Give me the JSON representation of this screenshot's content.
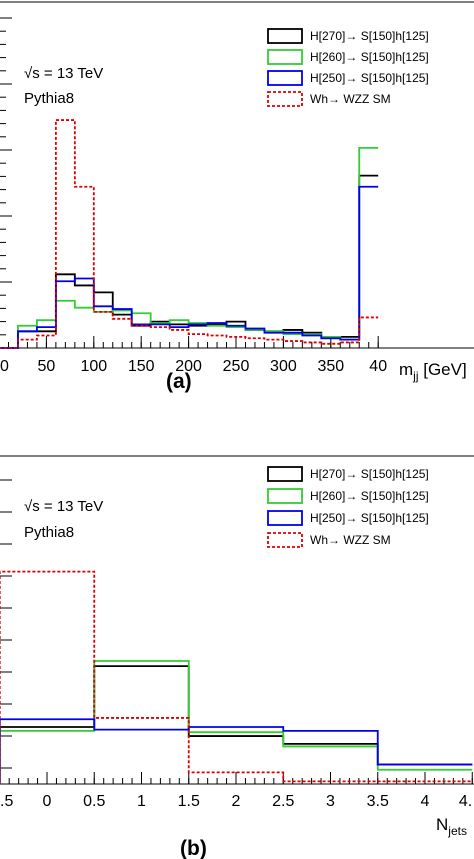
{
  "chart_data": [
    {
      "type": "histogram",
      "panel_label": "(a)",
      "xlabel": "m",
      "xlabel_sub": "jj",
      "xlabel_unit": " [GeV]",
      "xlim": [
        0,
        400
      ],
      "ylim": [
        0,
        1
      ],
      "x_ticks": [
        "0",
        "50",
        "100",
        "150",
        "200",
        "250",
        "300",
        "350",
        "40"
      ],
      "annotations": [
        "√s = 13 TeV",
        "Pythia8"
      ],
      "legend_position": "top-right",
      "bin_edges": [
        0,
        20,
        40,
        60,
        80,
        100,
        120,
        140,
        160,
        180,
        200,
        220,
        240,
        260,
        280,
        300,
        320,
        340,
        360,
        380,
        400
      ],
      "series": [
        {
          "name": "H[270]→ S[150]h[125]",
          "color": "#000000",
          "dashed": false,
          "values": [
            0.0,
            0.06,
            0.06,
            0.265,
            0.225,
            0.2,
            0.12,
            0.08,
            0.095,
            0.085,
            0.08,
            0.085,
            0.095,
            0.065,
            0.06,
            0.065,
            0.055,
            0.035,
            0.04,
            0.62
          ]
        },
        {
          "name": "H[260]→ S[150]h[125]",
          "color": "#33cc33",
          "dashed": false,
          "values": [
            0.0,
            0.08,
            0.1,
            0.17,
            0.145,
            0.13,
            0.135,
            0.125,
            0.09,
            0.1,
            0.09,
            0.08,
            0.075,
            0.065,
            0.06,
            0.05,
            0.05,
            0.04,
            0.03,
            0.72
          ]
        },
        {
          "name": "H[250]→ S[150]h[125]",
          "color": "#0000ee",
          "dashed": false,
          "values": [
            0.0,
            0.06,
            0.075,
            0.24,
            0.25,
            0.15,
            0.14,
            0.085,
            0.085,
            0.075,
            0.085,
            0.09,
            0.08,
            0.07,
            0.055,
            0.055,
            0.045,
            0.035,
            0.03,
            0.58
          ]
        },
        {
          "name": "Wh→ WZZ SM",
          "color": "#dd0000",
          "dashed": true,
          "values": [
            0.0,
            0.03,
            0.045,
            0.82,
            0.58,
            0.13,
            0.105,
            0.08,
            0.075,
            0.065,
            0.05,
            0.045,
            0.04,
            0.035,
            0.03,
            0.025,
            0.02,
            0.015,
            0.02,
            0.11
          ]
        }
      ]
    },
    {
      "type": "histogram",
      "panel_label": "(b)",
      "xlabel": "N",
      "xlabel_sub": "jets",
      "xlim": [
        -0.5,
        4.5
      ],
      "ylim": [
        0,
        1
      ],
      "x_ticks": [
        ".5",
        "0",
        "0.5",
        "1",
        "1.5",
        "2",
        "2.5",
        "3",
        "3.5",
        "4",
        "4."
      ],
      "annotations": [
        "√s = 13 TeV",
        "Pythia8"
      ],
      "legend_position": "top-right",
      "bin_edges": [
        -0.5,
        0.5,
        1.5,
        2.5,
        3.5,
        4.5
      ],
      "series": [
        {
          "name": "H[270]→ S[150]h[125]",
          "color": "#000000",
          "dashed": false,
          "values": [
            0.22,
            0.455,
            0.185,
            0.155,
            0.075
          ]
        },
        {
          "name": "H[260]→ S[150]h[125]",
          "color": "#33cc33",
          "dashed": false,
          "values": [
            0.205,
            0.475,
            0.2,
            0.145,
            0.055
          ]
        },
        {
          "name": "H[250]→ S[150]h[125]",
          "color": "#0000ee",
          "dashed": false,
          "values": [
            0.25,
            0.21,
            0.22,
            0.205,
            0.075
          ]
        },
        {
          "name": "Wh→ WZZ SM",
          "color": "#dd0000",
          "dashed": true,
          "values": [
            0.82,
            0.255,
            0.045,
            0.01,
            0.01
          ]
        }
      ]
    }
  ]
}
